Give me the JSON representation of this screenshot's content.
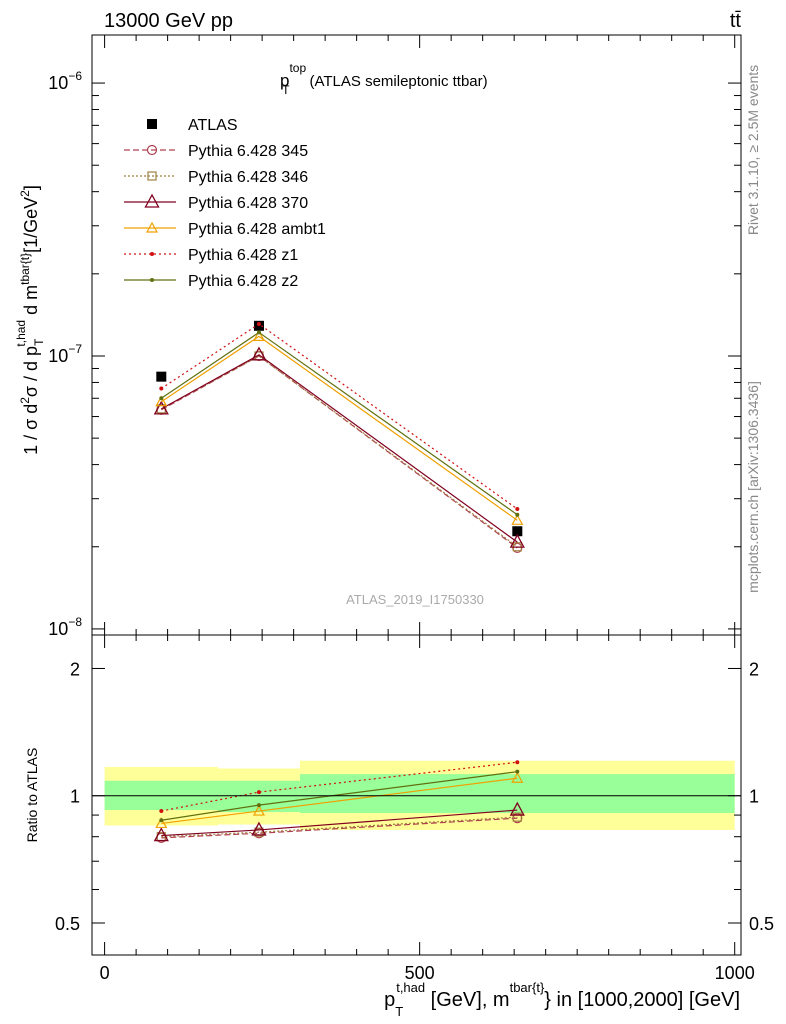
{
  "header": {
    "energy_label": "13000 GeV pp",
    "process_label": "tt̄"
  },
  "side_labels": {
    "rivet": "Rivet 3.1.10, ≥ 2.5M events",
    "mcplots": "mcplots.cern.ch [arXiv:1306.3436]"
  },
  "watermark": "ATLAS_2019_I1750330",
  "colors": {
    "data": "#000000",
    "p345": "#b04050",
    "p346": "#a08040",
    "p370": "#800020",
    "ambt1": "#f0a000",
    "z1": "#d01010",
    "z2": "#607010",
    "band_green": "#99ff99",
    "band_yellow": "#ffff99"
  },
  "chart_data": [
    {
      "type": "line",
      "panel": "main",
      "title": {
        "main": "p",
        "sup": "top",
        "sub": "T",
        "rest": "(ATLAS semileptonic ttbar)"
      },
      "ylabel_parts": {
        "a": "1 / σ d",
        "a_sup": "2",
        "b": "σ / d p",
        "c_sub": "T",
        "c_sup": "t,had",
        "d": " d m",
        "d_sup": "tbar{t}",
        "e": "[1/GeV",
        "e_sup": "2",
        "f": "]"
      },
      "y_scale": "log",
      "ylim": [
        9.5e-09,
        1.5e-06
      ],
      "xlim": [
        -20,
        1010
      ],
      "y_ticks": [
        {
          "value": 1e-06,
          "base": "10",
          "exp": "−6"
        },
        {
          "value": 1e-07,
          "base": "10",
          "exp": "−7"
        },
        {
          "value": 1e-08,
          "base": "10",
          "exp": "−8"
        }
      ],
      "legend_position": "top-left",
      "series": [
        {
          "name": "ATLAS",
          "key": "data",
          "marker": "square",
          "dash": "none",
          "points": [
            [
              90,
              8.4e-08
            ],
            [
              245,
              1.29e-07
            ],
            [
              655,
              2.28e-08
            ]
          ]
        },
        {
          "name": "Pythia 6.428 345",
          "key": "p345",
          "marker": "circle",
          "dash": "6,3",
          "points": [
            [
              90,
              6.35e-08
            ],
            [
              245,
              1e-07
            ],
            [
              655,
              1.98e-08
            ]
          ]
        },
        {
          "name": "Pythia 6.428 346",
          "key": "p346",
          "marker": "square-open",
          "dash": "2,2",
          "points": [
            [
              90,
              6.4e-08
            ],
            [
              245,
              1e-07
            ],
            [
              655,
              2e-08
            ]
          ]
        },
        {
          "name": "Pythia 6.428 370",
          "key": "p370",
          "marker": "triangle-big",
          "dash": "none",
          "points": [
            [
              90,
              6.4e-08
            ],
            [
              245,
              1.01e-07
            ],
            [
              655,
              2.08e-08
            ]
          ]
        },
        {
          "name": "Pythia 6.428 ambt1",
          "key": "ambt1",
          "marker": "triangle",
          "dash": "none",
          "points": [
            [
              90,
              6.8e-08
            ],
            [
              245,
              1.18e-07
            ],
            [
              655,
              2.5e-08
            ]
          ]
        },
        {
          "name": "Pythia 6.428 z1",
          "key": "z1",
          "marker": "dot",
          "dash": "2,3",
          "points": [
            [
              90,
              7.6e-08
            ],
            [
              245,
              1.31e-07
            ],
            [
              655,
              2.75e-08
            ]
          ]
        },
        {
          "name": "Pythia 6.428 z2",
          "key": "z2",
          "marker": "dot",
          "dash": "none",
          "points": [
            [
              90,
              7e-08
            ],
            [
              245,
              1.22e-07
            ],
            [
              655,
              2.62e-08
            ]
          ]
        }
      ]
    },
    {
      "type": "line",
      "panel": "ratio",
      "ylabel": "Ratio to ATLAS",
      "y_scale": "log",
      "ylim": [
        0.42,
        2.4
      ],
      "y_ticks": [
        {
          "value": 0.5,
          "label": "0.5"
        },
        {
          "value": 1,
          "label": "1"
        },
        {
          "value": 2,
          "label": "2"
        }
      ],
      "x_ticks": [
        {
          "value": 0,
          "label": "0"
        },
        {
          "value": 500,
          "label": "500"
        },
        {
          "value": 1000,
          "label": "1000"
        }
      ],
      "xlabel_parts": {
        "a": "p",
        "a_sub": "T",
        "a_sup": "t,had",
        "b": " [GeV], m",
        "b_sup": "tbar{t}",
        "c": "} in [1000,2000] [GeV]"
      },
      "uncertainty_bands": [
        {
          "x": [
            0,
            180
          ],
          "inner": [
            0.925,
            1.085
          ],
          "outer": [
            0.85,
            1.17
          ]
        },
        {
          "x": [
            180,
            310
          ],
          "inner": [
            0.915,
            1.085
          ],
          "outer": [
            0.855,
            1.16
          ]
        },
        {
          "x": [
            310,
            1000
          ],
          "inner": [
            0.91,
            1.125
          ],
          "outer": [
            0.83,
            1.21
          ]
        }
      ],
      "series": [
        {
          "key": "p345",
          "marker": "circle",
          "dash": "6,3",
          "points": [
            [
              90,
              0.795
            ],
            [
              245,
              0.815
            ],
            [
              655,
              0.885
            ]
          ]
        },
        {
          "key": "p346",
          "marker": "square-open",
          "dash": "2,2",
          "points": [
            [
              90,
              0.8
            ],
            [
              245,
              0.82
            ],
            [
              655,
              0.89
            ]
          ]
        },
        {
          "key": "p370",
          "marker": "triangle-big",
          "dash": "none",
          "points": [
            [
              90,
              0.805
            ],
            [
              245,
              0.83
            ],
            [
              655,
              0.925
            ]
          ]
        },
        {
          "key": "ambt1",
          "marker": "triangle",
          "dash": "none",
          "points": [
            [
              90,
              0.86
            ],
            [
              245,
              0.92
            ],
            [
              655,
              1.1
            ]
          ]
        },
        {
          "key": "z1",
          "marker": "dot",
          "dash": "2,3",
          "points": [
            [
              90,
              0.92
            ],
            [
              245,
              1.02
            ],
            [
              655,
              1.2
            ]
          ]
        },
        {
          "key": "z2",
          "marker": "dot",
          "dash": "none",
          "points": [
            [
              90,
              0.875
            ],
            [
              245,
              0.95
            ],
            [
              655,
              1.14
            ]
          ]
        }
      ]
    }
  ]
}
